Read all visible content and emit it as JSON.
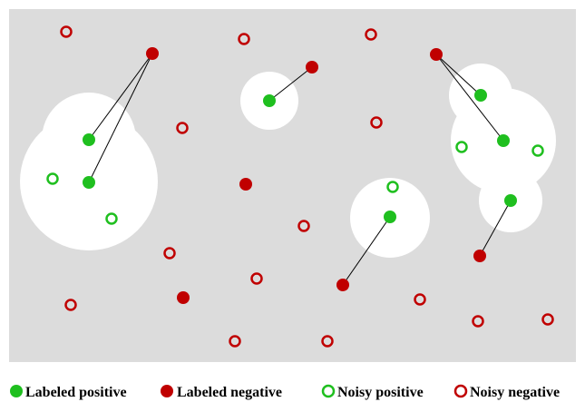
{
  "colors": {
    "background": "#dcdcdc",
    "region": "#ffffff",
    "positive": "#1fbf1f",
    "negative": "#c00000",
    "link": "#000000"
  },
  "legend": {
    "labeled_positive": "Labeled positive",
    "labeled_negative": "Labeled negative",
    "noisy_positive": "Noisy positive",
    "noisy_negative": "Noisy negative"
  }
}
